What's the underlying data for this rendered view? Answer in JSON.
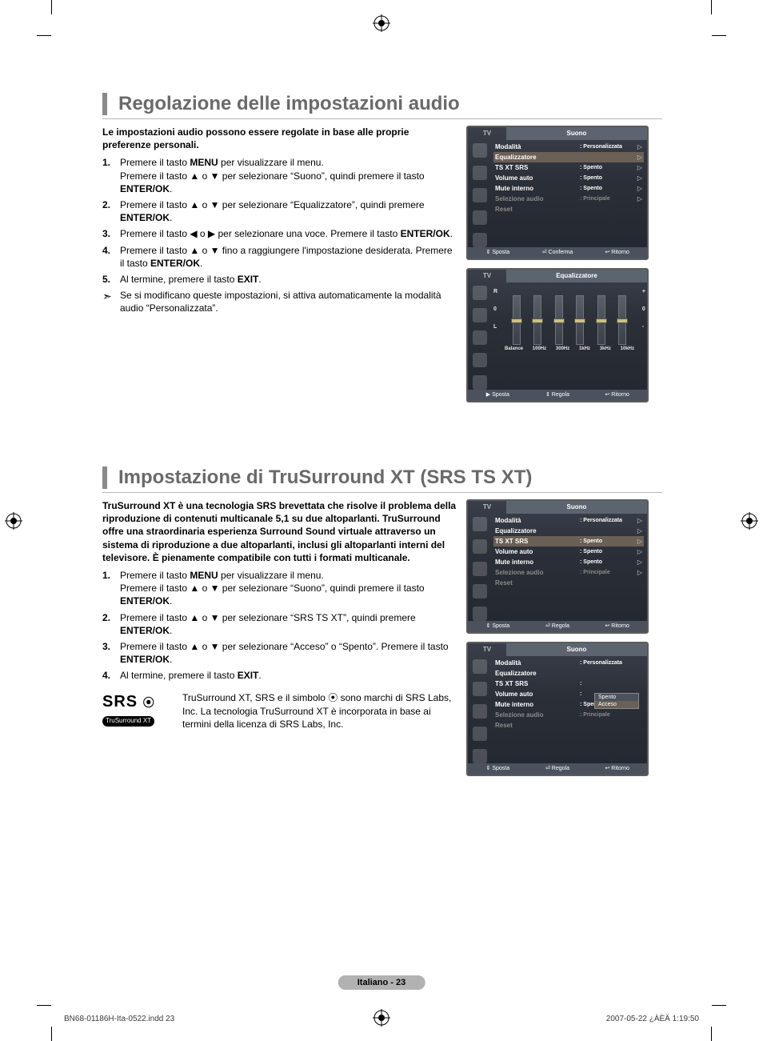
{
  "symbols": {
    "up": "▲",
    "down": "▼",
    "left": "◀",
    "right": "▶",
    "note_arrow": "➣",
    "return": "↩",
    "enter": "⏎",
    "updown": "⇕"
  },
  "section1": {
    "title": "Regolazione delle impostazioni audio",
    "lead": "Le impostazioni audio possono essere regolate in base alle proprie preferenze personali.",
    "steps": [
      "Premere il tasto <b>MENU</b> per visualizzare il menu.<br>Premere il tasto ▲ o ▼ per selezionare “Suono”, quindi premere il tasto <b>ENTER/OK</b>.",
      "Premere il tasto ▲ o ▼ per selezionare “Equalizzatore”, quindi premere <b>ENTER/OK</b>.",
      "Premere il tasto ◀ o ▶ per selezionare una voce. Premere il tasto <b>ENTER/OK</b>.",
      "Premere il tasto ▲ o ▼ fino a raggiungere l'impostazione desiderata. Premere il tasto <b>ENTER/OK</b>.",
      "Al termine, premere il tasto <b>EXIT</b>."
    ],
    "note": "Se si modificano queste impostazioni, si attiva automaticamente la modalità  audio “Personalizzata”."
  },
  "section2": {
    "title": "Impostazione di TruSurround XT (SRS TS XT)",
    "lead": "TruSurround XT è una tecnologia SRS brevettata che risolve il problema della riproduzione di contenuti multicanale 5,1 su due altoparlanti. TruSurround offre una straordinaria esperienza Surround Sound virtuale attraverso un sistema di riproduzione a due altoparlanti, inclusi gli altoparlanti interni del televisore. È pienamente compatibile con tutti i formati multicanale.",
    "steps": [
      "Premere il tasto <b>MENU</b> per visualizzare il menu.<br>Premere il tasto ▲ o ▼ per selezionare “Suono”, quindi premere il tasto <b>ENTER/OK</b>.",
      "Premere il tasto ▲ o ▼ per selezionare “SRS TS XT”, quindi premere <b>ENTER/OK</b>.",
      "Premere il tasto ▲ o ▼ per selezionare “Acceso” o “Spento”. Premere il tasto <b>ENTER/OK</b>.",
      "Al termine, premere il tasto <b>EXIT</b>."
    ],
    "logo_primary": "SRS",
    "logo_badge": "TruSurround XT",
    "logo_text": "TruSurround XT, SRS e il simbolo ⦿ sono marchi di SRS Labs, Inc. La tecnologia TruSurround XT è incorporata in base ai termini della licenza di SRS Labs, Inc."
  },
  "osd_common": {
    "tv": "TV",
    "footer_sposta": "Sposta",
    "footer_conferma": "Conferma",
    "footer_regola": "Regola",
    "footer_ritorno": "Ritorno"
  },
  "osd1": {
    "title": "Suono",
    "rows": [
      {
        "label": "Modalità",
        "value": ": Personalizzata",
        "arrow": true
      },
      {
        "label": "Equalizzatore",
        "value": "",
        "arrow": true,
        "selected": true
      },
      {
        "label": "TS XT SRS",
        "value": ": Spento",
        "arrow": true
      },
      {
        "label": "Volume auto",
        "value": ": Spento",
        "arrow": true
      },
      {
        "label": "Mute interno",
        "value": ": Spento",
        "arrow": true
      },
      {
        "label": "Selezione audio",
        "value": ": Principale",
        "arrow": true,
        "dim": true
      },
      {
        "label": "Reset",
        "value": "",
        "arrow": false,
        "dim": true
      }
    ],
    "footer": [
      "Sposta",
      "Conferma",
      "Ritorno"
    ]
  },
  "osd2": {
    "title": "Equalizzatore",
    "scale": [
      "R",
      "0",
      "L"
    ],
    "bands": [
      {
        "label": "Balance",
        "knob_pct": 50
      },
      {
        "label": "100Hz",
        "knob_pct": 50
      },
      {
        "label": "300Hz",
        "knob_pct": 50
      },
      {
        "label": "1kHz",
        "knob_pct": 50
      },
      {
        "label": "3kHz",
        "knob_pct": 50
      },
      {
        "label": "10kHz",
        "knob_pct": 50
      }
    ],
    "right_scale": [
      "+",
      "0",
      "-"
    ],
    "footer": [
      "Sposta",
      "Regola",
      "Ritorno"
    ]
  },
  "osd3": {
    "title": "Suono",
    "rows": [
      {
        "label": "Modalità",
        "value": ": Personalizzata",
        "arrow": true
      },
      {
        "label": "Equalizzatore",
        "value": "",
        "arrow": true
      },
      {
        "label": "TS XT SRS",
        "value": ": Spento",
        "arrow": true,
        "selected": true
      },
      {
        "label": "Volume auto",
        "value": ": Spento",
        "arrow": true
      },
      {
        "label": "Mute interno",
        "value": ": Spento",
        "arrow": true
      },
      {
        "label": "Selezione audio",
        "value": ": Principale",
        "arrow": true,
        "dim": true
      },
      {
        "label": "Reset",
        "value": "",
        "arrow": false,
        "dim": true
      }
    ],
    "footer": [
      "Sposta",
      "Regola",
      "Ritorno"
    ]
  },
  "osd4": {
    "title": "Suono",
    "rows": [
      {
        "label": "Modalità",
        "value": ": Personalizzata",
        "arrow": false
      },
      {
        "label": "Equalizzatore",
        "value": "",
        "arrow": false
      },
      {
        "label": "TS XT SRS",
        "value": ":",
        "arrow": false
      },
      {
        "label": "Volume auto",
        "value": ":",
        "arrow": false
      },
      {
        "label": "Mute interno",
        "value": ": Spento",
        "arrow": false
      },
      {
        "label": "Selezione audio",
        "value": ": Principale",
        "arrow": false,
        "dim": true
      },
      {
        "label": "Reset",
        "value": "",
        "arrow": false,
        "dim": true
      }
    ],
    "popup": {
      "items": [
        "Spento",
        "Acceso"
      ],
      "selected": 1
    },
    "footer": [
      "Sposta",
      "Regola",
      "Ritorno"
    ]
  },
  "page_pill": "Italiano - 23",
  "footer_left": "BN68-01186H-Ita-0522.indd   23",
  "footer_right": "2007-05-22   ¿ÀÈÄ 1:19:50",
  "style": {
    "page_bg": "#ffffff",
    "title_color": "#6a6a6a",
    "bar_color": "#8a8a8a",
    "rule_color": "#b8b8b8",
    "osd_border": "#5c5c5c",
    "osd_bg_top": "#3a3f4a",
    "osd_bg_bot": "#232730",
    "osd_header_bg": "#5c6470",
    "osd_sel_bg": "#6b6055",
    "osd_dim": "#8b8b8b",
    "osd_footer_bg": "#4b525e",
    "pill_bg": "#b2b2b2",
    "body_fontsize": 12,
    "title_fontsize": 24
  }
}
